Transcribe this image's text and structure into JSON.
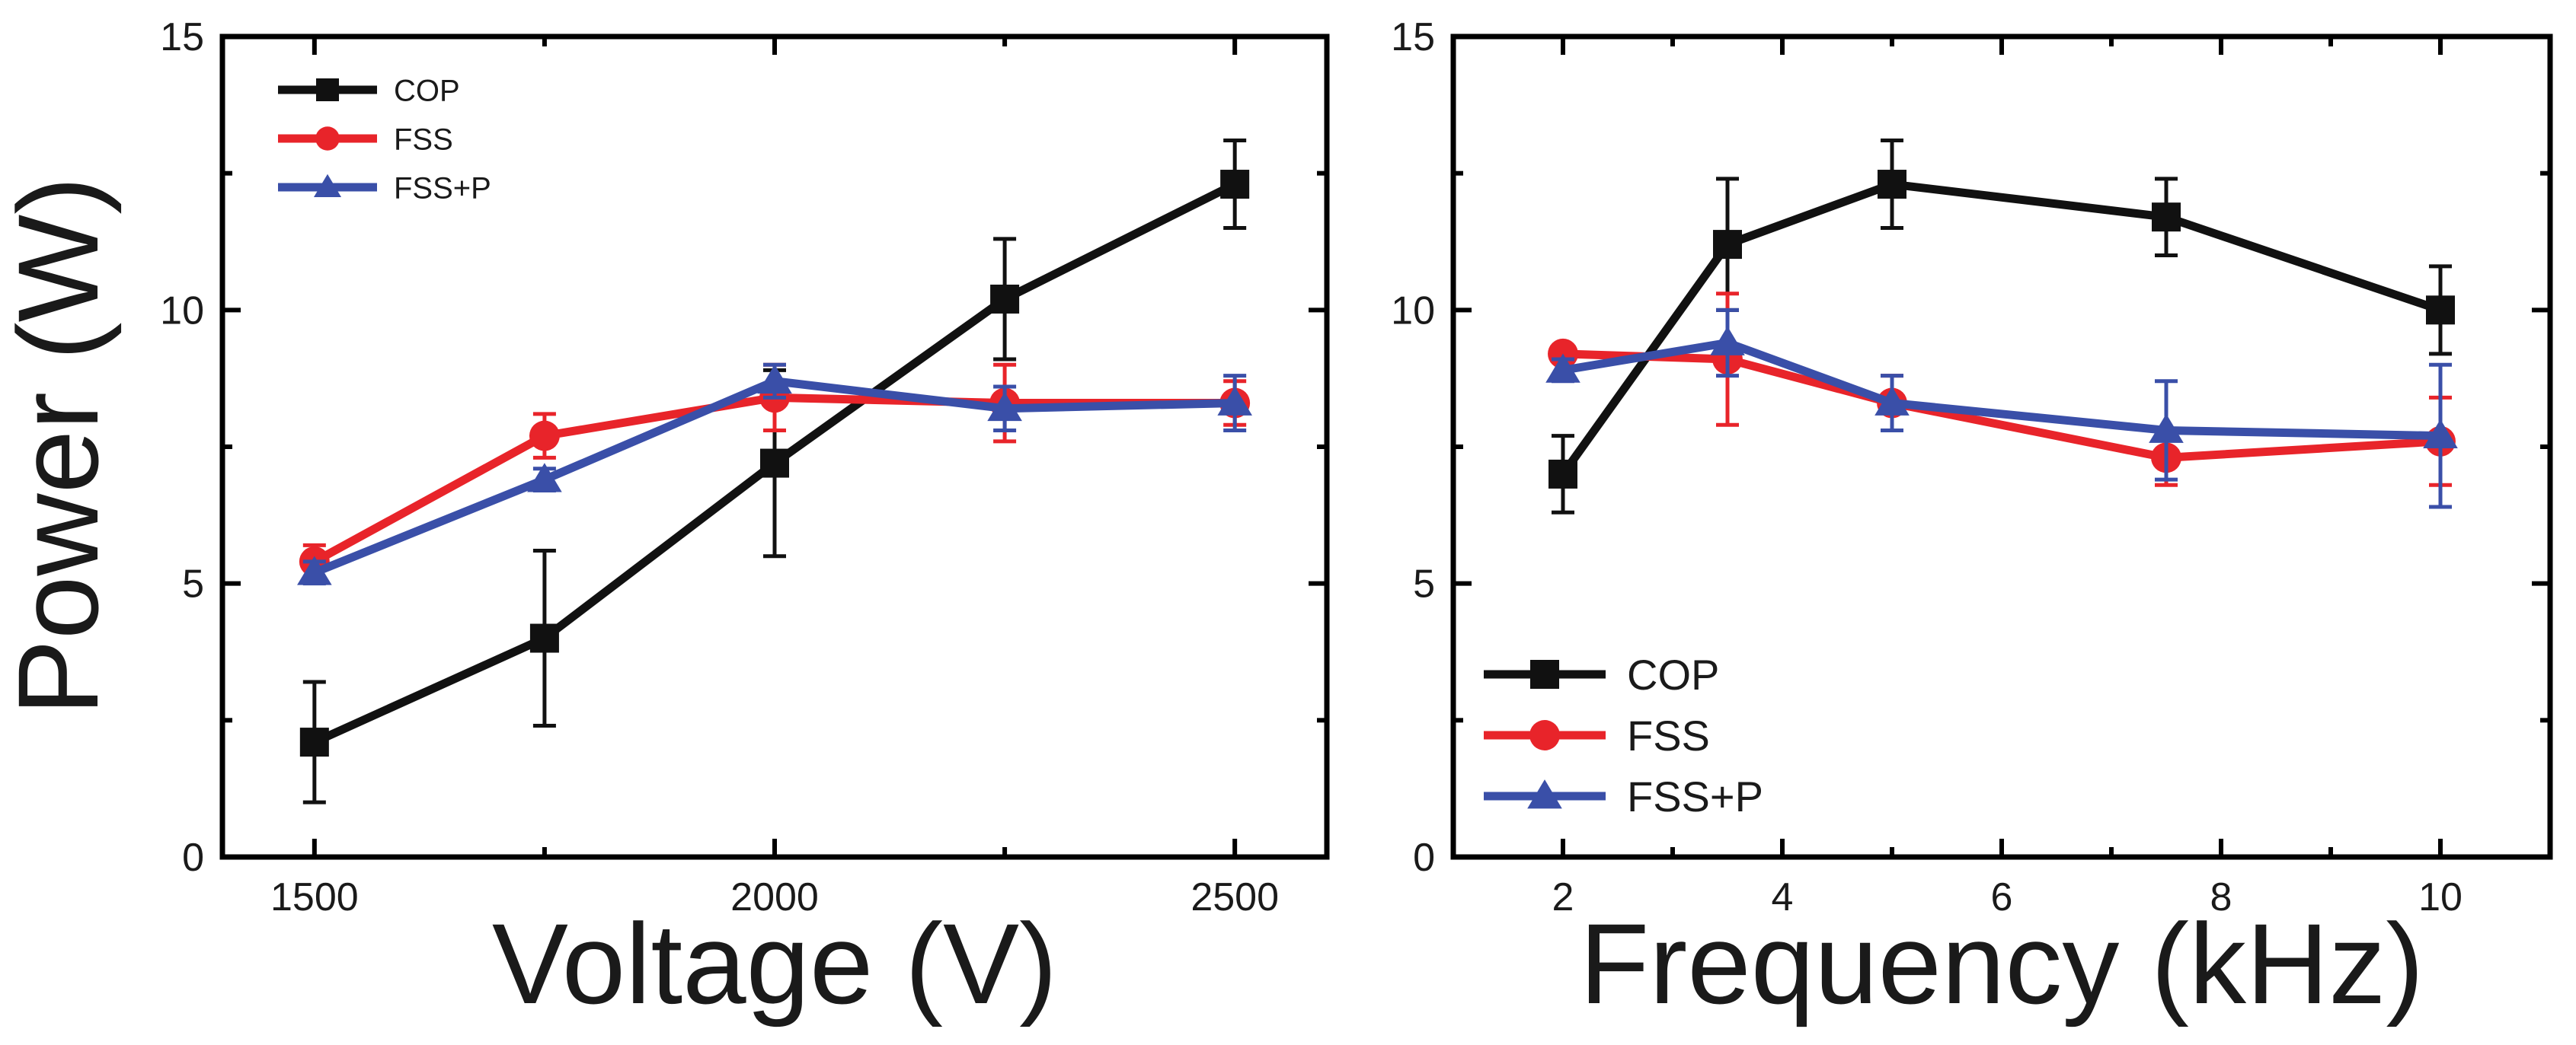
{
  "chart_data": [
    {
      "type": "line",
      "title": "",
      "xlabel": "Voltage (V)",
      "ylabel": "Power (W)",
      "xlim": [
        1400,
        2600
      ],
      "ylim": [
        0,
        15
      ],
      "xticks": [
        1500,
        2000,
        2500
      ],
      "yticks": [
        0,
        5,
        10,
        15
      ],
      "grid": false,
      "legend_position": "top-left",
      "series": [
        {
          "name": "COP",
          "color": "#111111",
          "marker": "square",
          "x": [
            1500,
            1750,
            2000,
            2250,
            2500
          ],
          "y": [
            2.1,
            4.0,
            7.2,
            10.2,
            12.3
          ],
          "err": [
            1.1,
            1.6,
            1.7,
            1.1,
            0.8
          ]
        },
        {
          "name": "FSS",
          "color": "#e8242a",
          "marker": "circle",
          "x": [
            1500,
            1750,
            2000,
            2250,
            2500
          ],
          "y": [
            5.4,
            7.7,
            8.4,
            8.3,
            8.3
          ],
          "err": [
            0.3,
            0.4,
            0.6,
            0.7,
            0.4
          ]
        },
        {
          "name": "FSS+P",
          "color": "#3a4fa8",
          "marker": "triangle",
          "x": [
            1500,
            1750,
            2000,
            2250,
            2500
          ],
          "y": [
            5.2,
            6.9,
            8.7,
            8.2,
            8.3
          ],
          "err": [
            0.2,
            0.2,
            0.3,
            0.4,
            0.5
          ]
        }
      ]
    },
    {
      "type": "line",
      "title": "",
      "xlabel": "Frequency (kHz)",
      "ylabel": "",
      "xlim": [
        1,
        11
      ],
      "ylim": [
        0,
        15
      ],
      "xticks": [
        2,
        4,
        6,
        8,
        10
      ],
      "yticks": [
        0,
        5,
        10,
        15
      ],
      "grid": false,
      "legend_position": "bottom-left",
      "series": [
        {
          "name": "COP",
          "color": "#111111",
          "marker": "square",
          "x": [
            2,
            3.5,
            5,
            7.5,
            10
          ],
          "y": [
            7.0,
            11.2,
            12.3,
            11.7,
            10.0
          ],
          "err": [
            0.7,
            1.2,
            0.8,
            0.7,
            0.8
          ]
        },
        {
          "name": "FSS",
          "color": "#e8242a",
          "marker": "circle",
          "x": [
            2,
            3.5,
            5,
            7.5,
            10
          ],
          "y": [
            9.2,
            9.1,
            8.3,
            7.3,
            7.6
          ],
          "err": [
            0.1,
            1.2,
            0.5,
            0.5,
            0.8
          ]
        },
        {
          "name": "FSS+P",
          "color": "#3a4fa8",
          "marker": "triangle",
          "x": [
            2,
            3.5,
            5,
            7.5,
            10
          ],
          "y": [
            8.9,
            9.4,
            8.3,
            7.8,
            7.7
          ],
          "err": [
            0.2,
            0.6,
            0.5,
            0.9,
            1.3
          ]
        }
      ]
    }
  ]
}
